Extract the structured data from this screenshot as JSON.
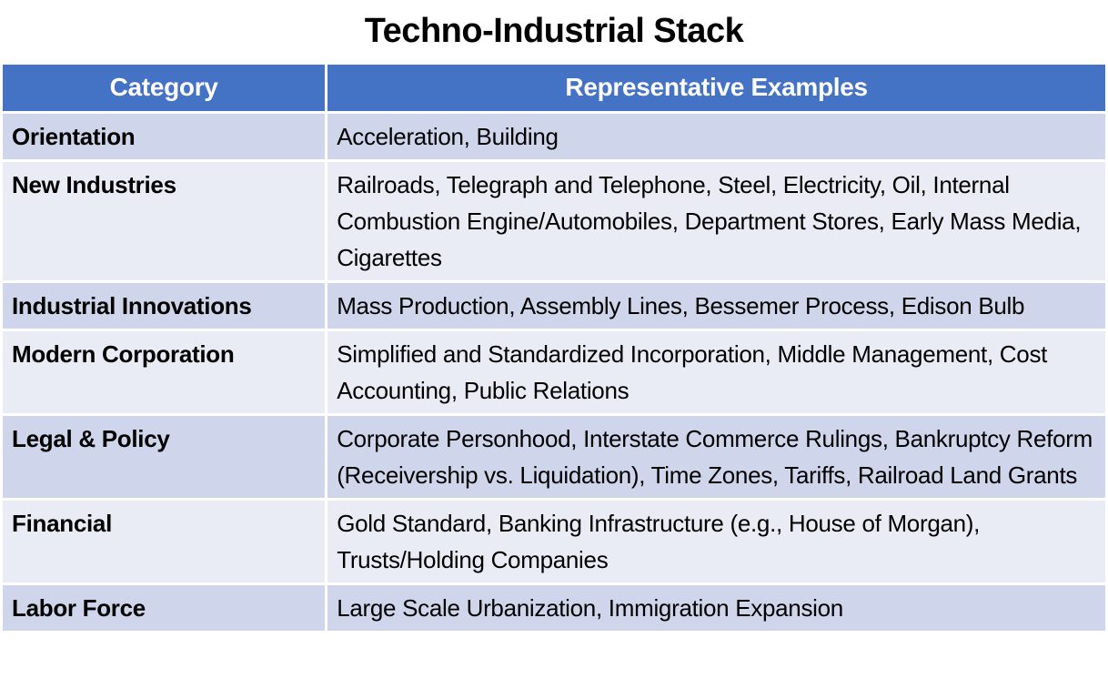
{
  "slide": {
    "title": "Techno-Industrial Stack"
  },
  "table": {
    "headers": [
      "Category",
      "Representative Examples"
    ],
    "rows": [
      {
        "category": "Orientation",
        "examples": "Acceleration, Building"
      },
      {
        "category": "New Industries",
        "examples": "Railroads, Telegraph and Telephone, Steel, Electricity, Oil, Internal Combustion Engine/Automobiles, Department Stores, Early Mass Media, Cigarettes"
      },
      {
        "category": "Industrial Innovations",
        "examples": "Mass Production, Assembly Lines, Bessemer Process, Edison Bulb"
      },
      {
        "category": "Modern Corporation",
        "examples": "Simplified and Standardized Incorporation, Middle Management, Cost Accounting, Public Relations"
      },
      {
        "category": "Legal & Policy",
        "examples": "Corporate Personhood, Interstate Commerce Rulings, Bankruptcy Reform (Receivership vs. Liquidation), Time Zones, Tariffs, Railroad Land Grants"
      },
      {
        "category": "Financial",
        "examples": "Gold Standard, Banking Infrastructure (e.g., House of Morgan), Trusts/Holding Companies"
      },
      {
        "category": "Labor Force",
        "examples": "Large Scale Urbanization, Immigration Expansion"
      }
    ]
  },
  "colors": {
    "header_bg": "#4472C4",
    "header_text": "#FFFFFF",
    "band_dark": "#CFD5EA",
    "band_light": "#E9EBF5",
    "grid": "#FFFFFF",
    "body_text": "#000000",
    "title_text": "#000000"
  }
}
